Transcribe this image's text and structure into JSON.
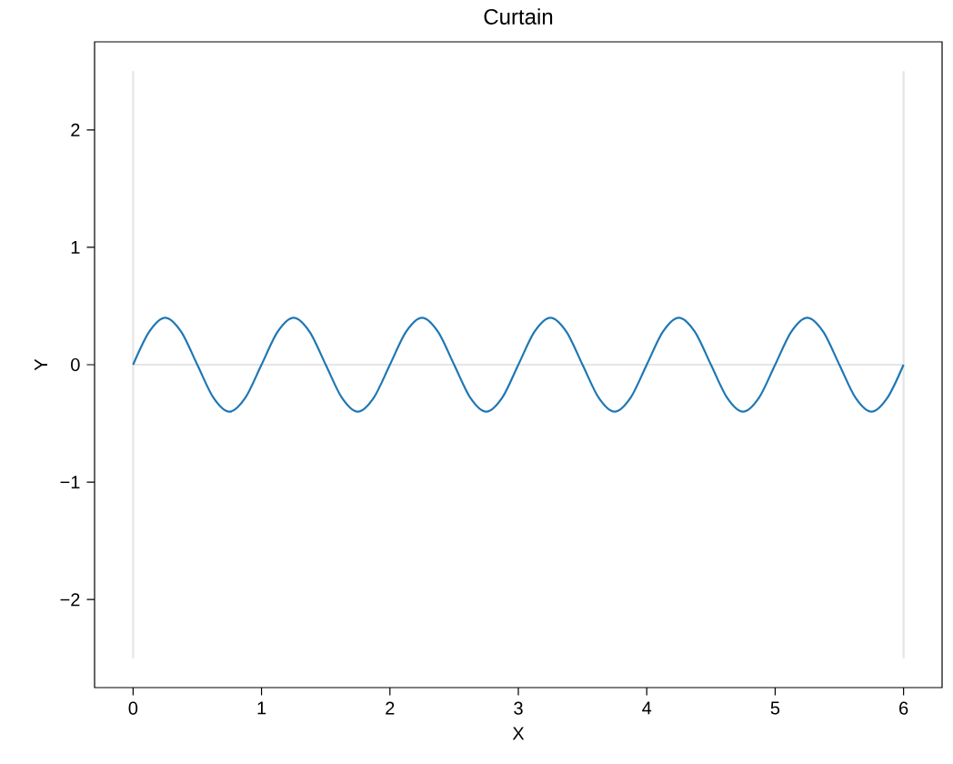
{
  "chart_data": {
    "type": "line",
    "title": "Curtain",
    "xlabel": "X",
    "ylabel": "Y",
    "xlim": [
      -0.3,
      6.3
    ],
    "ylim": [
      -2.75,
      2.75
    ],
    "xticks": [
      0,
      1,
      2,
      3,
      4,
      5,
      6
    ],
    "yticks": [
      {
        "value": -2,
        "label": "−2"
      },
      {
        "value": -1,
        "label": "−1"
      },
      0,
      1,
      2
    ],
    "grid": false,
    "marker": "none",
    "line_style": "solid",
    "series": [
      {
        "color": "#e5e5e5",
        "x": [
          0,
          0
        ],
        "values": [
          -2.5,
          2.5
        ]
      },
      {
        "color": "#e5e5e5",
        "x": [
          6,
          6
        ],
        "values": [
          -2.5,
          2.5
        ]
      },
      {
        "color": "#e5e5e5",
        "x": [
          0,
          6
        ],
        "values": [
          0,
          0
        ]
      },
      {
        "color": "#1f77b4",
        "x": [
          0,
          0.125,
          0.25,
          0.375,
          0.5,
          0.625,
          0.75,
          0.875,
          1,
          1.125,
          1.25,
          1.375,
          1.5,
          1.625,
          1.75,
          1.875,
          2,
          2.125,
          2.25,
          2.375,
          2.5,
          2.625,
          2.75,
          2.875,
          3,
          3.125,
          3.25,
          3.375,
          3.5,
          3.625,
          3.75,
          3.875,
          4,
          4.125,
          4.25,
          4.375,
          4.5,
          4.625,
          4.75,
          4.875,
          5,
          5.125,
          5.25,
          5.375,
          5.5,
          5.625,
          5.75,
          5.875,
          6
        ],
        "values": [
          0,
          0.28,
          0.4,
          0.28,
          0,
          -0.28,
          -0.4,
          -0.28,
          0,
          0.28,
          0.4,
          0.28,
          0,
          -0.28,
          -0.4,
          -0.28,
          0,
          0.28,
          0.4,
          0.28,
          0,
          -0.28,
          -0.4,
          -0.28,
          0,
          0.28,
          0.4,
          0.28,
          0,
          -0.28,
          -0.4,
          -0.28,
          0,
          0.28,
          0.4,
          0.28,
          0,
          -0.28,
          -0.4,
          -0.28,
          0,
          0.28,
          0.4,
          0.28,
          0,
          -0.28,
          -0.4,
          -0.28,
          0
        ]
      }
    ]
  }
}
